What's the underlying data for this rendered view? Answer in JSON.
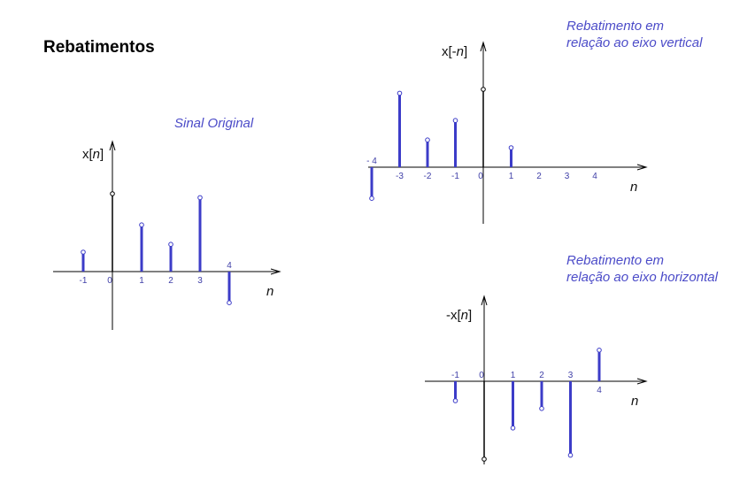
{
  "title": "Rebatimentos",
  "colors": {
    "stem": "#3c3cc8",
    "caption": "#4b4bc8",
    "axis": "#000000",
    "tick": "#4040a8"
  },
  "charts": [
    {
      "id": "original",
      "caption": [
        "Sinal Original"
      ],
      "ylabel_parts": [
        "x[",
        "n",
        "]"
      ],
      "xlabel": "n",
      "ticks": [
        "-1",
        "0",
        "1",
        "2",
        "3",
        "4"
      ],
      "samples": [
        {
          "n": -1,
          "v": 0.5
        },
        {
          "n": 0,
          "v": 2.0
        },
        {
          "n": 1,
          "v": 1.2
        },
        {
          "n": 2,
          "v": 0.7
        },
        {
          "n": 3,
          "v": 1.9
        },
        {
          "n": 4,
          "v": -0.8
        }
      ]
    },
    {
      "id": "vertical",
      "caption": [
        "Rebatimento em",
        "relação ao eixo vertical"
      ],
      "ylabel_parts": [
        "x[-",
        "n",
        "]"
      ],
      "xlabel": "n",
      "ticks": [
        "- 4",
        "-3",
        "-2",
        "-1",
        "0",
        "1",
        "2",
        "3",
        "4"
      ],
      "samples": [
        {
          "n": -4,
          "v": -0.8
        },
        {
          "n": -3,
          "v": 1.9
        },
        {
          "n": -2,
          "v": 0.7
        },
        {
          "n": -1,
          "v": 1.2
        },
        {
          "n": 0,
          "v": 2.0
        },
        {
          "n": 1,
          "v": 0.5
        }
      ]
    },
    {
      "id": "horizontal",
      "caption": [
        "Rebatimento em",
        "relação ao eixo horizontal"
      ],
      "ylabel_parts": [
        "-x[",
        "n",
        "]"
      ],
      "xlabel": "n",
      "ticks": [
        "-1",
        "0",
        "1",
        "2",
        "3",
        "4"
      ],
      "samples": [
        {
          "n": -1,
          "v": -0.5
        },
        {
          "n": 0,
          "v": -2.0
        },
        {
          "n": 1,
          "v": -1.2
        },
        {
          "n": 2,
          "v": -0.7
        },
        {
          "n": 3,
          "v": -1.9
        },
        {
          "n": 4,
          "v": 0.8
        }
      ]
    }
  ]
}
